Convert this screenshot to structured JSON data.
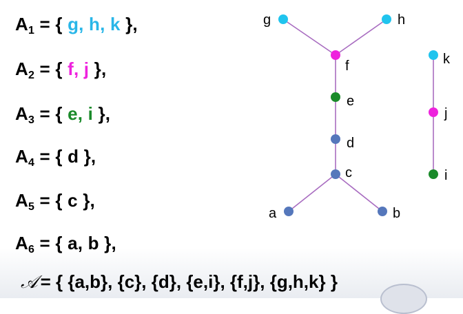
{
  "sets": [
    {
      "name": "A",
      "index": "1",
      "elements": [
        {
          "label": "g",
          "color": "#29b6e8"
        },
        {
          "label": "h",
          "color": "#29b6e8"
        },
        {
          "label": "k",
          "color": "#29b6e8"
        }
      ],
      "terminator": "},"
    },
    {
      "name": "A",
      "index": "2",
      "elements": [
        {
          "label": "f",
          "color": "#ee22dd"
        },
        {
          "label": "j",
          "color": "#ee22dd"
        }
      ],
      "terminator": "},"
    },
    {
      "name": "A",
      "index": "3",
      "elements": [
        {
          "label": "e",
          "color": "#1a8a2a"
        },
        {
          "label": "i",
          "color": "#1a8a2a"
        }
      ],
      "terminator": "},"
    },
    {
      "name": "A",
      "index": "4",
      "elements": [
        {
          "label": "d",
          "color": "#000000"
        }
      ],
      "terminator": "},"
    },
    {
      "name": "A",
      "index": "5",
      "elements": [
        {
          "label": "c",
          "color": "#000000"
        }
      ],
      "terminator": "},"
    },
    {
      "name": "A",
      "index": "6",
      "elements": [
        {
          "label": "a",
          "color": "#000000"
        },
        {
          "label": "b",
          "color": "#000000"
        }
      ],
      "terminator": "},"
    }
  ],
  "collection": {
    "symbol": "𝒜",
    "text": "= { {a,b}, {c}, {d}, {e,i}, {f,j}, {g,h,k} }"
  },
  "graph": {
    "edge_color": "#a86cc0",
    "nodes": [
      {
        "id": "g",
        "label": "g",
        "color": "#20c4ee"
      },
      {
        "id": "h",
        "label": "h",
        "color": "#20c4ee"
      },
      {
        "id": "f",
        "label": "f",
        "color": "#ee22dd"
      },
      {
        "id": "e",
        "label": "e",
        "color": "#1a8a2a"
      },
      {
        "id": "d",
        "label": "d",
        "color": "#5577bb"
      },
      {
        "id": "c",
        "label": "c",
        "color": "#5577bb"
      },
      {
        "id": "a",
        "label": "a",
        "color": "#5577bb"
      },
      {
        "id": "b",
        "label": "b",
        "color": "#5577bb"
      },
      {
        "id": "k",
        "label": "k",
        "color": "#20c4ee"
      },
      {
        "id": "j",
        "label": "j",
        "color": "#ee22dd"
      },
      {
        "id": "i",
        "label": "i",
        "color": "#1a8a2a"
      }
    ],
    "edges": [
      [
        "g",
        "f"
      ],
      [
        "h",
        "f"
      ],
      [
        "f",
        "e"
      ],
      [
        "e",
        "d"
      ],
      [
        "d",
        "c"
      ],
      [
        "c",
        "a"
      ],
      [
        "c",
        "b"
      ],
      [
        "k",
        "j"
      ],
      [
        "j",
        "i"
      ]
    ]
  }
}
